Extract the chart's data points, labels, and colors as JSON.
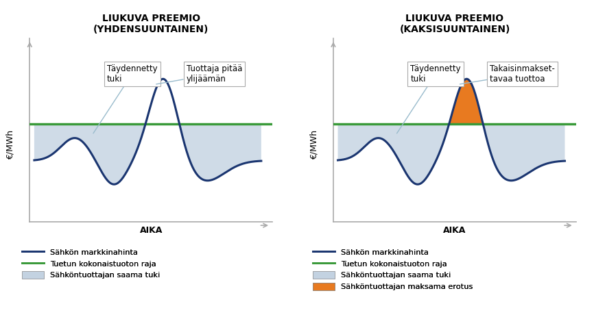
{
  "title1": "LIUKUVA PREEMIO\n(YHDENSUUNTAINEN)",
  "title2": "LIUKUVA PREEMIO\n(KAKSISUUNTAINEN)",
  "xlabel": "AIKA",
  "ylabel": "€/MWh",
  "ref_level": 0.56,
  "curve_color": "#1a3570",
  "ref_color": "#3a9a3a",
  "fill_blue": "#c0cfe0",
  "fill_blue_alpha": 0.75,
  "fill_orange": "#e87a20",
  "fill_orange_alpha": 1.0,
  "axis_color": "#aaaaaa",
  "annotation_line_color": "#99bbcc",
  "box_color": "#ffffff",
  "box_edge": "#aaaaaa",
  "legend_blue_label": "Sähkön markkinahinta",
  "legend_green_label": "Tuetun kokonaistuoton raja",
  "legend_fill_blue_label": "Sähköntuottajan saama tuki",
  "legend_fill_orange_label": "Sähköntuottajan maksama erotus",
  "annot_left": "Täydennetty\ntuki",
  "annot_right_1": "Tuottaja pitää\nylijäämän",
  "annot_right_2": "Takaisinmakset-\ntavaa tuottoa",
  "bg_color": "#ffffff"
}
